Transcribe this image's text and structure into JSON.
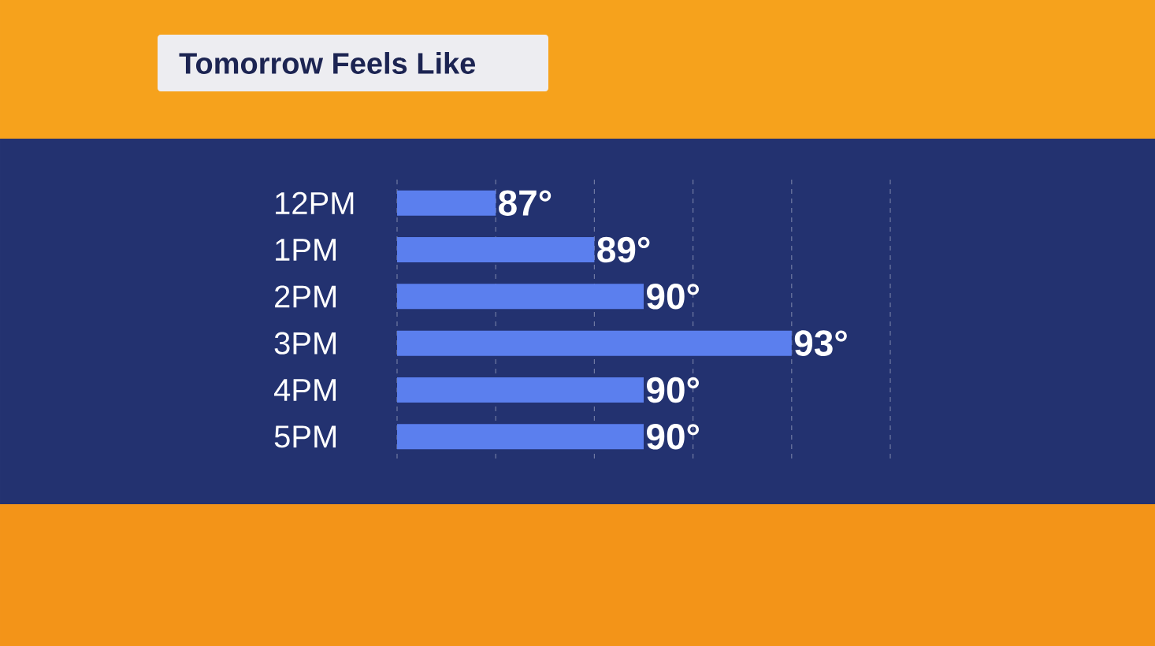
{
  "chart_data": {
    "type": "bar",
    "orientation": "horizontal",
    "title": "Tomorrow Feels Like",
    "categories": [
      "12PM",
      "1PM",
      "2PM",
      "3PM",
      "4PM",
      "5PM"
    ],
    "values": [
      87,
      89,
      90,
      93,
      90,
      90
    ],
    "value_labels": [
      "87°",
      "89°",
      "90°",
      "93°",
      "90°",
      "90°"
    ],
    "color": "#5b7fee",
    "xlim": [
      85,
      95
    ],
    "xticks": [
      {
        "value": 85,
        "label": null
      },
      {
        "value": 87,
        "label": null
      },
      {
        "value": 89,
        "label": null
      },
      {
        "value": 91,
        "label": null
      },
      {
        "value": 93,
        "label": null
      },
      {
        "value": 95,
        "label": null
      }
    ],
    "grid": "x"
  }
}
